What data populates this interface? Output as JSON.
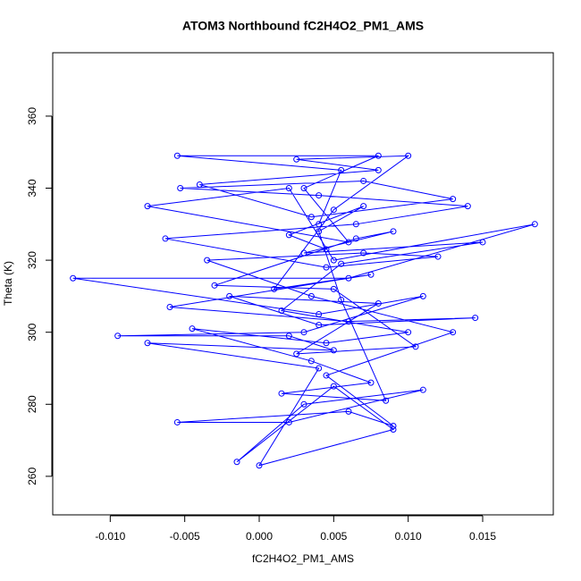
{
  "chart_data": {
    "type": "line",
    "markers": true,
    "title": "ATOM3 Northbound fC2H4O2_PM1_AMS",
    "xlabel": "fC2H4O2_PM1_AMS",
    "ylabel": "Theta (K)",
    "color": "#0000ff",
    "xlim": [
      -0.01386,
      0.01974
    ],
    "ylim": [
      249.3,
      377.6
    ],
    "xticks": [
      {
        "value": -0.01,
        "label": "-0.010"
      },
      {
        "value": -0.005,
        "label": "-0.005"
      },
      {
        "value": 0,
        "label": "0.000"
      },
      {
        "value": 0.005,
        "label": "0.005"
      },
      {
        "value": 0.01,
        "label": "0.010"
      },
      {
        "value": 0.015,
        "label": "0.015"
      }
    ],
    "yticks": [
      260,
      280,
      300,
      320,
      340,
      360
    ],
    "x": [
      0.004,
      0.0055,
      -0.0055,
      0.008,
      0.003,
      0.006,
      -0.0075,
      0.002,
      0.005,
      0.0185,
      0.006,
      -0.0125,
      0.004,
      0.011,
      0.003,
      -0.0095,
      0.002,
      0.005,
      -0.0075,
      0.004,
      0.0,
      0.009,
      0.005,
      -0.0015,
      0.003,
      0.011,
      0.002,
      -0.0055,
      0.006,
      0.009,
      0.0045,
      0.013,
      0.0035,
      -0.0035,
      0.007,
      0.012,
      0.0045,
      -0.0063,
      0.0065,
      0.014,
      0.004,
      -0.0053,
      0.007,
      0.013,
      0.0035,
      -0.004,
      0.008,
      0.0025,
      0.01,
      0.005,
      0.001,
      0.0075,
      -0.006,
      0.006,
      0.0145,
      0.004,
      -0.002,
      0.008,
      0.0025,
      0.0105,
      0.005,
      -0.003,
      0.0065,
      0.009,
      0.003,
      0.015,
      0.0055,
      0.0015,
      0.01,
      0.0045,
      -0.0045,
      0.0035,
      0.0075,
      0.0015,
      0.0085,
      0.0055,
      0.004,
      0.007,
      0.002,
      0.0045
    ],
    "values": [
      330,
      345,
      349,
      349,
      340,
      325,
      335,
      340,
      320,
      330,
      315,
      315,
      305,
      310,
      300,
      299,
      299,
      295,
      297,
      290,
      263,
      273,
      285,
      264,
      280,
      284,
      275,
      275,
      278,
      274,
      288,
      300,
      310,
      320,
      322,
      321,
      318,
      326,
      330,
      335,
      338,
      340,
      342,
      337,
      332,
      341,
      345,
      348,
      349,
      334,
      312,
      316,
      307,
      303,
      304,
      302,
      310,
      308,
      294,
      296,
      312,
      313,
      326,
      328,
      322,
      325,
      319,
      306,
      300,
      297,
      301,
      292,
      286,
      283,
      281,
      309,
      328,
      335,
      327,
      323
    ]
  }
}
